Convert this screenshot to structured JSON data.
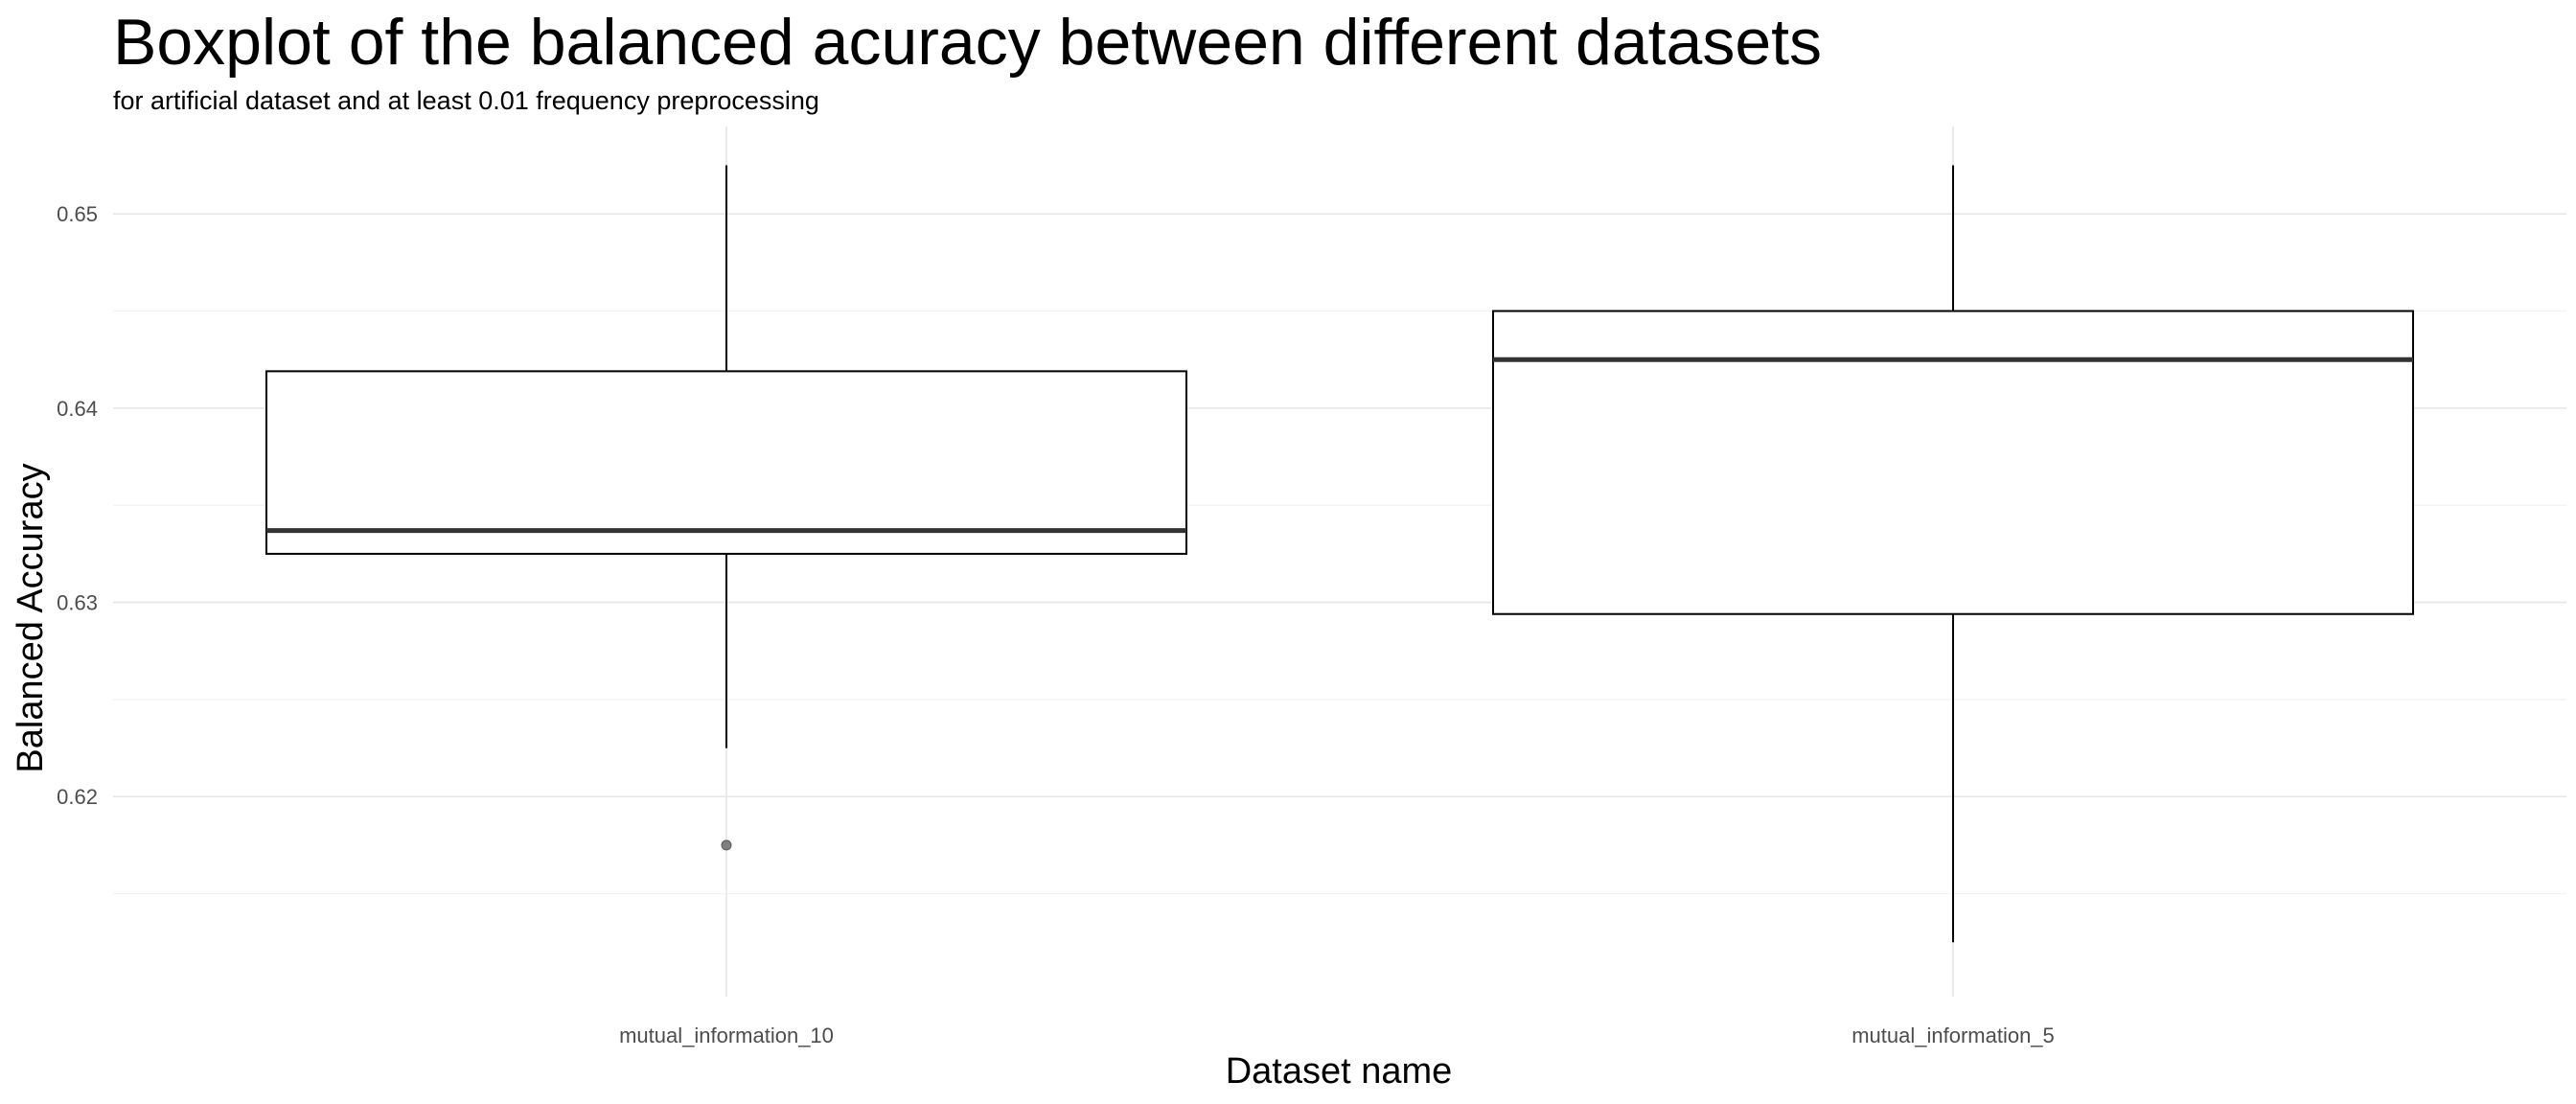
{
  "chart_data": {
    "type": "boxplot",
    "title": "Boxplot of the balanced acuracy between different datasets",
    "subtitle": "for artificial dataset and at least 0.01 frequency preprocessing",
    "xlabel": "Dataset name",
    "ylabel": "Balanced Accuracy",
    "ylim": [
      0.6097,
      0.6545
    ],
    "y_ticks": [
      0.62,
      0.63,
      0.64,
      0.65
    ],
    "y_tick_labels": [
      "0.62",
      "0.63",
      "0.64",
      "0.65"
    ],
    "grid": true,
    "categories": [
      "mutual_information_10",
      "mutual_information_5"
    ],
    "boxes": [
      {
        "category": "mutual_information_10",
        "whisker_low": 0.6225,
        "q1": 0.6325,
        "median": 0.6337,
        "q3": 0.6419,
        "whisker_high": 0.6525,
        "outliers": [
          0.6175
        ]
      },
      {
        "category": "mutual_information_5",
        "whisker_low": 0.6125,
        "q1": 0.6294,
        "median": 0.6425,
        "q3": 0.645,
        "whisker_high": 0.6525,
        "outliers": []
      }
    ],
    "colors": {
      "box_line": "#000000",
      "median_line": "#333333",
      "outlier": "#7f7f7f",
      "grid_major": "#e6e6e6",
      "grid_minor": "#f2f2f2",
      "tick_text": "#4d4d4d"
    }
  }
}
